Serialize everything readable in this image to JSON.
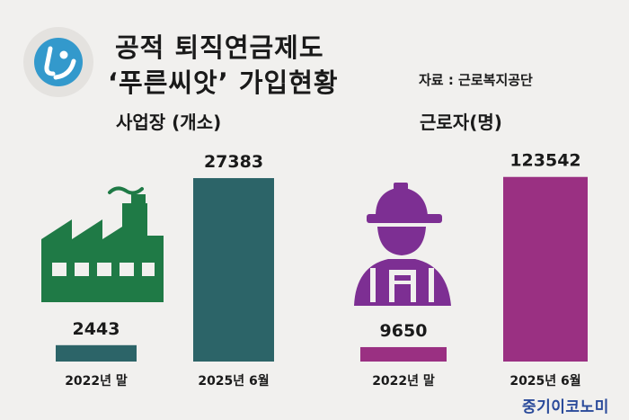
{
  "header": {
    "title_line1": "공적 퇴직연금제도",
    "title_line2": "‘푸른씨앗’ 가입현황",
    "source": "자료 : 근로복지공단"
  },
  "colors": {
    "left_series": "#2c6468",
    "right_series": "#9a3082",
    "factory_icon": "#1f7a46",
    "worker_icon": "#7d2f93",
    "logo_icon": "#3399cc"
  },
  "icons": [
    "logo-icon",
    "factory-icon",
    "worker-icon"
  ],
  "chart_data": [
    {
      "type": "bar",
      "title": "사업장 (개소)",
      "categories": [
        "2022년 말",
        "2025년 6월"
      ],
      "values": [
        2443,
        27383
      ],
      "value_labels": [
        "2443",
        "27383"
      ],
      "ylim": [
        0,
        29000
      ]
    },
    {
      "type": "bar",
      "title": "근로자(명)",
      "categories": [
        "2022년 말",
        "2025년 6월"
      ],
      "values": [
        9650,
        123542
      ],
      "value_labels": [
        "9650",
        "123542"
      ],
      "ylim": [
        0,
        130000
      ]
    }
  ],
  "footer": {
    "brand": "중기이코노미"
  }
}
